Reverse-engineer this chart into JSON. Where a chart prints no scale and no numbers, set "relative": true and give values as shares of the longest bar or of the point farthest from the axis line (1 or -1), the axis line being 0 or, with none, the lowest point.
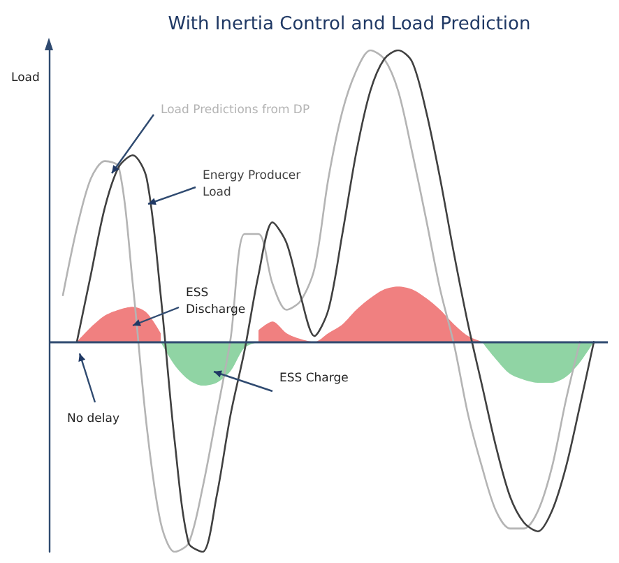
{
  "chart_data": {
    "type": "line",
    "title": "With Inertia Control and Load Prediction",
    "ylabel": "Load",
    "relative": true,
    "grid": false,
    "legend": false,
    "marker": "none",
    "line_style": "solid",
    "annotations": [
      "No delay"
    ],
    "ref_lines": [
      {
        "axis": "y",
        "value": 0,
        "color": "#2f4a70"
      }
    ],
    "categories": [
      null,
      null,
      null,
      null,
      null,
      null,
      null,
      null,
      null,
      null,
      null,
      null,
      null,
      null,
      null,
      null,
      null,
      null,
      null,
      null,
      null,
      null,
      null,
      null,
      null,
      null,
      null,
      null,
      null,
      null,
      null,
      null,
      null,
      null,
      null,
      null,
      null,
      null,
      null,
      null,
      null
    ],
    "series": [
      {
        "name": "Load Predictions from DP",
        "color": "#b4b4b4",
        "values": [
          null,
          0.16,
          0.39,
          0.56,
          0.62,
          0.6,
          0.2,
          -0.29,
          -0.62,
          -0.72,
          -0.69,
          -0.5,
          -0.25,
          0.01,
          0.37,
          0.37,
          0.2,
          0.11,
          0.14,
          0.25,
          0.56,
          0.79,
          0.93,
          1,
          0.97,
          0.86,
          0.65,
          0.42,
          0.18,
          -0.01,
          -0.25,
          -0.43,
          -0.58,
          -0.64,
          -0.64,
          -0.58,
          -0.43,
          -0.2,
          0,
          null,
          null
        ]
      },
      {
        "name": "Energy Producer Load",
        "color": "#404040",
        "values": [
          null,
          null,
          0,
          0.23,
          0.46,
          0.6,
          0.64,
          0.56,
          0.16,
          -0.34,
          -0.69,
          -0.72,
          -0.53,
          -0.25,
          -0.03,
          0.23,
          0.41,
          0.34,
          0.16,
          0.02,
          0.11,
          0.37,
          0.65,
          0.86,
          0.97,
          1,
          0.96,
          0.79,
          0.56,
          0.3,
          0.06,
          -0.15,
          -0.36,
          -0.53,
          -0.62,
          -0.65,
          -0.58,
          -0.43,
          -0.22,
          0,
          null
        ]
      },
      {
        "name": "ESS Discharge",
        "type": "area",
        "color": "#f08080",
        "values": [
          null,
          null,
          0,
          0.05,
          0.09,
          0.11,
          0.12,
          0.1,
          0.03,
          null,
          null,
          null,
          null,
          null,
          null,
          0.04,
          0.07,
          0.03,
          0.01,
          0,
          0.03,
          0.06,
          0.11,
          0.15,
          0.18,
          0.19,
          0.18,
          0.15,
          0.11,
          0.06,
          0.02,
          0,
          null,
          null,
          null,
          null,
          null,
          null,
          null,
          null,
          null
        ]
      },
      {
        "name": "ESS Charge",
        "type": "area",
        "color": "#90d4a4",
        "values": [
          null,
          null,
          null,
          null,
          null,
          null,
          null,
          null,
          0,
          -0.08,
          -0.13,
          -0.15,
          -0.14,
          -0.1,
          -0.02,
          0,
          null,
          null,
          null,
          null,
          null,
          null,
          null,
          null,
          null,
          null,
          null,
          null,
          null,
          null,
          null,
          0,
          -0.06,
          -0.11,
          -0.13,
          -0.14,
          -0.14,
          -0.12,
          -0.07,
          0,
          null
        ]
      }
    ]
  }
}
